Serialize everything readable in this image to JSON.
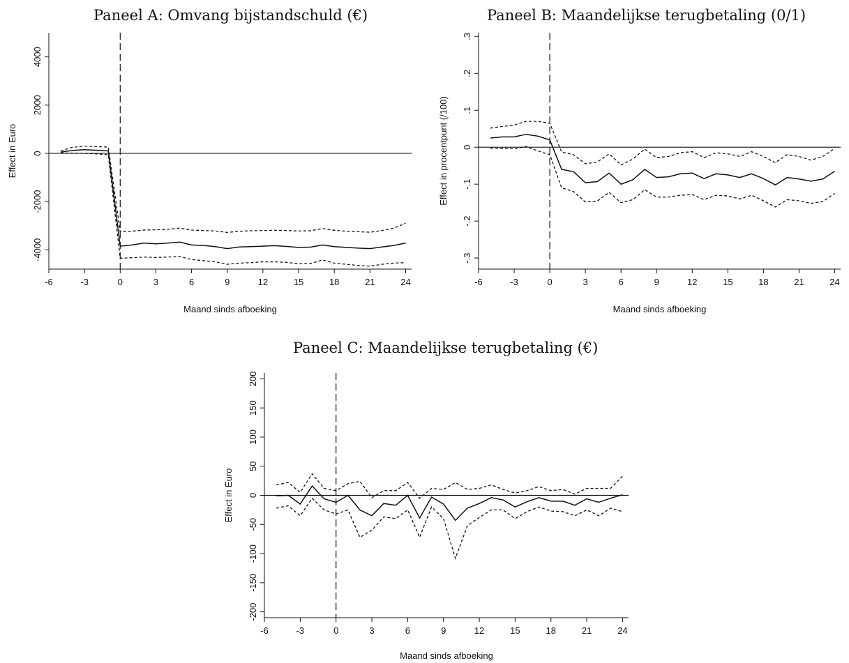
{
  "chart_data": [
    {
      "type": "line",
      "title": "Paneel A: Omvang bijstandschuld (€)",
      "xlabel": "Maand sinds afboeking",
      "ylabel": "Effect in Euro",
      "xlim": [
        -6,
        24.5
      ],
      "ylim": [
        -4800,
        5000
      ],
      "x_ticks": [
        -6,
        -3,
        0,
        3,
        6,
        9,
        12,
        15,
        18,
        21,
        24
      ],
      "y_ticks": [
        -4000,
        -2000,
        0,
        2000,
        4000
      ],
      "grid": false,
      "reference_lines": {
        "horizontal_y": 0,
        "vertical_dashed_x": 0
      },
      "x": [
        -5,
        -4,
        -3,
        -2,
        -1,
        0,
        1,
        2,
        3,
        4,
        5,
        6,
        7,
        8,
        9,
        10,
        11,
        12,
        13,
        14,
        15,
        16,
        17,
        18,
        19,
        20,
        21,
        22,
        23,
        24
      ],
      "series": [
        {
          "role": "estimate",
          "style": "solid",
          "values": [
            50,
            120,
            150,
            130,
            100,
            -3850,
            -3800,
            -3720,
            -3750,
            -3720,
            -3680,
            -3800,
            -3820,
            -3870,
            -3950,
            -3880,
            -3870,
            -3850,
            -3830,
            -3860,
            -3900,
            -3890,
            -3800,
            -3870,
            -3900,
            -3930,
            -3950,
            -3880,
            -3820,
            -3720
          ]
        },
        {
          "role": "upper",
          "style": "dashed",
          "values": [
            100,
            250,
            300,
            280,
            260,
            -3250,
            -3230,
            -3180,
            -3170,
            -3150,
            -3100,
            -3180,
            -3200,
            -3220,
            -3280,
            -3230,
            -3210,
            -3200,
            -3190,
            -3200,
            -3220,
            -3210,
            -3120,
            -3190,
            -3230,
            -3250,
            -3270,
            -3200,
            -3100,
            -2900
          ]
        },
        {
          "role": "lower",
          "style": "dashed",
          "values": [
            20,
            10,
            0,
            -20,
            -60,
            -4350,
            -4330,
            -4300,
            -4320,
            -4300,
            -4280,
            -4400,
            -4450,
            -4500,
            -4600,
            -4550,
            -4530,
            -4500,
            -4500,
            -4520,
            -4580,
            -4570,
            -4420,
            -4550,
            -4600,
            -4650,
            -4680,
            -4600,
            -4550,
            -4530
          ]
        }
      ]
    },
    {
      "type": "line",
      "title": "Paneel B: Maandelijkse terugbetaling (0/1)",
      "xlabel": "Maand sinds afboeking",
      "ylabel": "Effect in procentpunt (/100)",
      "xlim": [
        -6,
        24.5
      ],
      "ylim": [
        -0.33,
        0.31
      ],
      "x_ticks": [
        -6,
        -3,
        0,
        3,
        6,
        9,
        12,
        15,
        18,
        21,
        24
      ],
      "y_ticks": [
        -0.3,
        -0.2,
        -0.1,
        0,
        0.1,
        0.2,
        0.3
      ],
      "y_tick_labels": [
        "-.3",
        "-.2",
        "-.1",
        "0",
        ".1",
        ".2",
        ".3"
      ],
      "grid": false,
      "reference_lines": {
        "horizontal_y": 0,
        "vertical_dashed_x": 0
      },
      "x": [
        -5,
        -4,
        -3,
        -2,
        -1,
        0,
        1,
        2,
        3,
        4,
        5,
        6,
        7,
        8,
        9,
        10,
        11,
        12,
        13,
        14,
        15,
        16,
        17,
        18,
        19,
        20,
        21,
        22,
        23,
        24
      ],
      "series": [
        {
          "role": "estimate",
          "style": "solid",
          "values": [
            0.025,
            0.028,
            0.028,
            0.035,
            0.03,
            0.02,
            -0.06,
            -0.066,
            -0.096,
            -0.093,
            -0.07,
            -0.1,
            -0.088,
            -0.06,
            -0.082,
            -0.08,
            -0.072,
            -0.07,
            -0.085,
            -0.072,
            -0.075,
            -0.082,
            -0.072,
            -0.085,
            -0.102,
            -0.082,
            -0.086,
            -0.092,
            -0.086,
            -0.065
          ]
        },
        {
          "role": "upper",
          "style": "dashed",
          "values": [
            0.052,
            0.056,
            0.06,
            0.07,
            0.07,
            0.065,
            -0.013,
            -0.02,
            -0.045,
            -0.04,
            -0.018,
            -0.048,
            -0.032,
            -0.005,
            -0.028,
            -0.025,
            -0.015,
            -0.012,
            -0.028,
            -0.015,
            -0.018,
            -0.025,
            -0.012,
            -0.025,
            -0.042,
            -0.02,
            -0.025,
            -0.035,
            -0.025,
            -0.003
          ]
        },
        {
          "role": "lower",
          "style": "dashed",
          "values": [
            -0.002,
            -0.003,
            -0.004,
            0.002,
            -0.01,
            -0.02,
            -0.11,
            -0.12,
            -0.148,
            -0.146,
            -0.122,
            -0.15,
            -0.142,
            -0.115,
            -0.135,
            -0.135,
            -0.13,
            -0.128,
            -0.142,
            -0.13,
            -0.132,
            -0.14,
            -0.13,
            -0.145,
            -0.162,
            -0.142,
            -0.145,
            -0.152,
            -0.147,
            -0.125
          ]
        }
      ]
    },
    {
      "type": "line",
      "title": "Paneel C: Maandelijkse terugbetaling (€)",
      "xlabel": "Maand sinds afboeking",
      "ylabel": "Effect in Euro",
      "xlim": [
        -6,
        24.5
      ],
      "ylim": [
        -210,
        210
      ],
      "x_ticks": [
        -6,
        -3,
        0,
        3,
        6,
        9,
        12,
        15,
        18,
        21,
        24
      ],
      "y_ticks": [
        -200,
        -150,
        -100,
        -50,
        0,
        50,
        100,
        150,
        200
      ],
      "grid": false,
      "reference_lines": {
        "horizontal_y": 0,
        "vertical_dashed_x": 0
      },
      "x": [
        -5,
        -4,
        -3,
        -2,
        -1,
        0,
        1,
        2,
        3,
        4,
        5,
        6,
        7,
        8,
        9,
        10,
        11,
        12,
        13,
        14,
        15,
        16,
        17,
        18,
        19,
        20,
        21,
        22,
        23,
        24
      ],
      "series": [
        {
          "role": "estimate",
          "style": "solid",
          "values": [
            -1,
            0,
            -15,
            16,
            -6,
            -12,
            0,
            -25,
            -35,
            -14,
            -17,
            0,
            -39,
            -3,
            -15,
            -43,
            -22,
            -14,
            -4,
            -8,
            -20,
            -11,
            -4,
            -10,
            -10,
            -17,
            -6,
            -12,
            -5,
            1
          ]
        },
        {
          "role": "upper",
          "style": "dashed",
          "values": [
            18,
            22,
            5,
            37,
            12,
            8,
            20,
            24,
            -4,
            8,
            8,
            22,
            -5,
            12,
            10,
            22,
            10,
            12,
            18,
            10,
            4,
            8,
            15,
            8,
            10,
            2,
            12,
            12,
            12,
            33
          ]
        },
        {
          "role": "lower",
          "style": "dashed",
          "values": [
            -22,
            -18,
            -35,
            -5,
            -25,
            -32,
            -25,
            -72,
            -60,
            -37,
            -40,
            -25,
            -72,
            -20,
            -40,
            -108,
            -52,
            -38,
            -25,
            -25,
            -40,
            -28,
            -20,
            -27,
            -28,
            -35,
            -25,
            -35,
            -22,
            -28
          ]
        }
      ]
    }
  ]
}
